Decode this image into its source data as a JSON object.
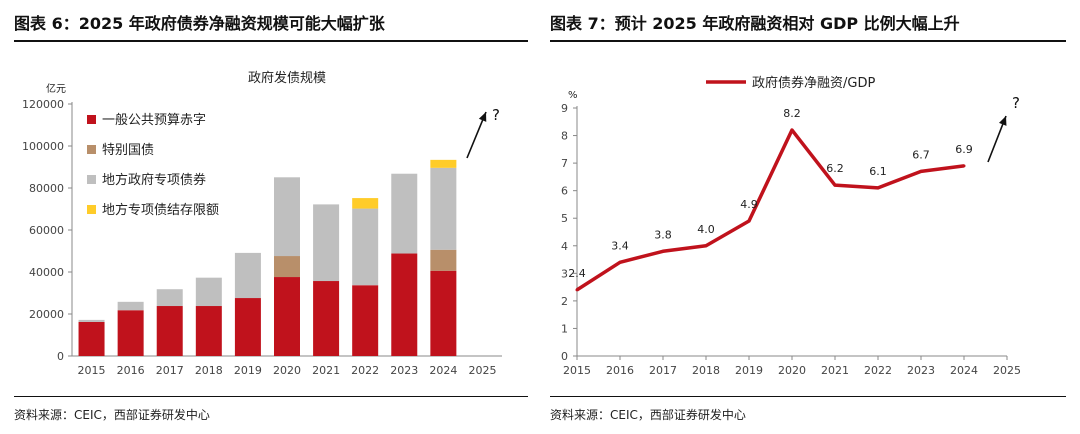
{
  "figures": [
    {
      "title": "图表 6：2025 年政府债券净融资规模可能大幅扩张",
      "source": "资料来源：CEIC，西部证券研发中心"
    },
    {
      "title": "图表 7：预计 2025 年政府融资相对 GDP 比例大幅上升",
      "source": "资料来源：CEIC，西部证券研发中心"
    }
  ],
  "chart_data": [
    {
      "type": "bar",
      "stacked": true,
      "title": "政府发债规模",
      "ylabel": "亿元",
      "ylim": [
        0,
        120000
      ],
      "yticks": [
        0,
        20000,
        40000,
        60000,
        80000,
        100000,
        120000
      ],
      "categories": [
        "2015",
        "2016",
        "2017",
        "2018",
        "2019",
        "2020",
        "2021",
        "2022",
        "2023",
        "2024",
        "2025"
      ],
      "series": [
        {
          "name": "一般公共预算赤字",
          "color": "#c0121c",
          "values": [
            16200,
            21800,
            23800,
            23800,
            27600,
            37600,
            35700,
            33700,
            48800,
            40600,
            null
          ]
        },
        {
          "name": "特别国债",
          "color": "#b88f6a",
          "values": [
            0,
            0,
            0,
            0,
            0,
            10000,
            0,
            0,
            0,
            10000,
            null
          ]
        },
        {
          "name": "地方政府专项债券",
          "color": "#bfbfbf",
          "values": [
            1000,
            4000,
            8000,
            13500,
            21500,
            37500,
            36500,
            36500,
            38000,
            39000,
            null
          ]
        },
        {
          "name": "地方专项债结存限额",
          "color": "#ffcc29",
          "values": [
            0,
            0,
            0,
            0,
            0,
            0,
            0,
            5000,
            0,
            3800,
            null
          ]
        }
      ],
      "legend_position": "top-left",
      "annotation": "?"
    },
    {
      "type": "line",
      "title": "",
      "ylabel": "%",
      "ylim": [
        0,
        9
      ],
      "yticks": [
        0,
        1,
        2,
        3,
        4,
        5,
        6,
        7,
        8,
        9
      ],
      "categories": [
        "2015",
        "2016",
        "2017",
        "2018",
        "2019",
        "2020",
        "2021",
        "2022",
        "2023",
        "2024",
        "2025"
      ],
      "series": [
        {
          "name": "政府债券净融资/GDP",
          "color": "#c0121c",
          "values": [
            2.4,
            3.4,
            3.8,
            4.0,
            4.9,
            8.2,
            6.2,
            6.1,
            6.7,
            6.9,
            null
          ],
          "labels": [
            "2.4",
            "3.4",
            "3.8",
            "4.0",
            "4.9",
            "8.2",
            "6.2",
            "6.1",
            "6.7",
            "6.9",
            null
          ]
        }
      ],
      "legend_position": "top-left",
      "annotation": "?"
    }
  ]
}
